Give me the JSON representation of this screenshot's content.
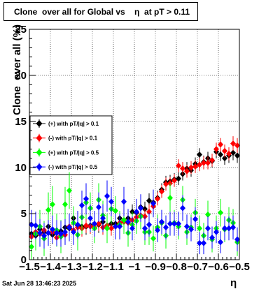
{
  "title": "Clone  over all for Global vs    η  at pT > 0.11",
  "timestamp": "Sat Jun 28 13:46:23 2025",
  "chart_data": {
    "type": "scatter",
    "title": "Clone  over all for Global vs    η  at pT > 0.11",
    "xlabel": "η",
    "ylabel": "Clone  over all (%)",
    "xlim": [
      -1.5,
      -0.5
    ],
    "ylim": [
      0,
      25
    ],
    "x_ticks": [
      "−1.5",
      "−1.4",
      "−1.3",
      "−1.2",
      "−1.1",
      "−1",
      "−0.9",
      "−0.8",
      "−0.7",
      "−0.6",
      "−0.5"
    ],
    "y_ticks": [
      "0",
      "5",
      "10",
      "15",
      "20",
      "25"
    ],
    "grid": true,
    "legend_position": "left-middle",
    "series": [
      {
        "name": "(+) with pT/|q| > 0.1",
        "color": "#000000",
        "x": [
          -1.49,
          -1.47,
          -1.45,
          -1.43,
          -1.41,
          -1.39,
          -1.37,
          -1.35,
          -1.33,
          -1.31,
          -1.29,
          -1.27,
          -1.25,
          -1.23,
          -1.21,
          -1.19,
          -1.17,
          -1.15,
          -1.13,
          -1.11,
          -1.09,
          -1.07,
          -1.05,
          -1.03,
          -1.01,
          -0.99,
          -0.97,
          -0.95,
          -0.93,
          -0.91,
          -0.89,
          -0.87,
          -0.85,
          -0.83,
          -0.81,
          -0.79,
          -0.77,
          -0.75,
          -0.73,
          -0.71,
          -0.69,
          -0.67,
          -0.65,
          -0.63,
          -0.61,
          -0.59,
          -0.57,
          -0.55,
          -0.53,
          -0.51
        ],
        "y": [
          2.8,
          2.6,
          3.3,
          3.0,
          3.6,
          2.7,
          2.9,
          3.1,
          3.5,
          3.4,
          4.5,
          3.7,
          3.6,
          3.6,
          3.7,
          3.4,
          3.8,
          4.1,
          3.7,
          3.9,
          3.9,
          4.5,
          4.2,
          4.5,
          5.2,
          5.1,
          5.7,
          5.5,
          6.4,
          6.2,
          6.7,
          7.6,
          8.4,
          8.5,
          8.7,
          8.8,
          9.3,
          9.9,
          9.7,
          10.4,
          11.4,
          10.6,
          11.0,
          10.7,
          11.7,
          11.4,
          11.0,
          11.3,
          11.6,
          11.3
        ],
        "err": [
          1.2,
          1.1,
          1.1,
          1.0,
          1.1,
          1.0,
          0.9,
          1.0,
          0.9,
          1.0,
          1.0,
          0.9,
          0.9,
          0.9,
          0.9,
          0.8,
          0.9,
          0.9,
          0.8,
          0.8,
          0.8,
          0.8,
          0.8,
          0.8,
          0.8,
          0.8,
          0.8,
          0.8,
          0.8,
          0.7,
          0.8,
          0.7,
          0.7,
          0.7,
          0.7,
          0.7,
          0.7,
          0.7,
          0.7,
          0.7,
          0.7,
          0.7,
          0.7,
          0.7,
          0.7,
          0.7,
          0.7,
          0.8,
          0.8,
          0.8
        ]
      },
      {
        "name": "(-) with pT/|q| > 0.1",
        "color": "#ff0000",
        "x": [
          -1.49,
          -1.47,
          -1.45,
          -1.43,
          -1.41,
          -1.39,
          -1.37,
          -1.35,
          -1.33,
          -1.31,
          -1.29,
          -1.27,
          -1.25,
          -1.23,
          -1.21,
          -1.19,
          -1.17,
          -1.15,
          -1.13,
          -1.11,
          -1.09,
          -1.07,
          -1.05,
          -1.03,
          -1.01,
          -0.99,
          -0.97,
          -0.95,
          -0.93,
          -0.91,
          -0.89,
          -0.87,
          -0.85,
          -0.83,
          -0.81,
          -0.79,
          -0.77,
          -0.75,
          -0.73,
          -0.71,
          -0.69,
          -0.67,
          -0.65,
          -0.63,
          -0.61,
          -0.59,
          -0.57,
          -0.55,
          -0.53,
          -0.51
        ],
        "y": [
          2.5,
          3.0,
          2.8,
          3.2,
          2.9,
          3.0,
          2.4,
          2.6,
          2.7,
          3.6,
          3.2,
          3.5,
          3.4,
          3.7,
          3.6,
          3.5,
          3.9,
          3.5,
          3.7,
          3.4,
          3.6,
          4.0,
          4.1,
          4.0,
          4.3,
          4.6,
          4.8,
          4.7,
          5.2,
          5.8,
          6.6,
          7.4,
          8.2,
          8.3,
          8.6,
          10.2,
          9.9,
          9.6,
          10.0,
          10.1,
          10.3,
          10.5,
          10.5,
          10.8,
          12.0,
          12.5,
          11.8,
          11.5,
          12.6,
          12.4
        ],
        "err": [
          1.2,
          1.1,
          1.1,
          1.0,
          1.0,
          1.0,
          0.9,
          0.9,
          0.9,
          0.9,
          0.9,
          0.9,
          0.9,
          0.8,
          0.8,
          0.8,
          0.8,
          0.8,
          0.8,
          0.8,
          0.8,
          0.8,
          0.8,
          0.8,
          0.8,
          0.8,
          0.8,
          0.8,
          0.8,
          0.7,
          0.7,
          0.7,
          0.7,
          0.7,
          0.7,
          0.7,
          0.7,
          0.7,
          0.7,
          0.7,
          0.7,
          0.7,
          0.7,
          0.7,
          0.7,
          0.7,
          0.7,
          0.7,
          0.8,
          0.8
        ]
      },
      {
        "name": "(+) with pT/|q| > 0.5",
        "color": "#00ff00",
        "x": [
          -1.49,
          -1.47,
          -1.45,
          -1.43,
          -1.41,
          -1.39,
          -1.37,
          -1.35,
          -1.33,
          -1.31,
          -1.29,
          -1.27,
          -1.25,
          -1.23,
          -1.21,
          -1.19,
          -1.17,
          -1.15,
          -1.13,
          -1.11,
          -1.09,
          -1.07,
          -1.05,
          -1.03,
          -1.01,
          -0.99,
          -0.97,
          -0.95,
          -0.93,
          -0.91,
          -0.89,
          -0.87,
          -0.85,
          -0.83,
          -0.81,
          -0.79,
          -0.77,
          -0.75,
          -0.73,
          -0.71,
          -0.69,
          -0.67,
          -0.65,
          -0.63,
          -0.61,
          -0.59,
          -0.57,
          -0.55,
          -0.53,
          -0.51
        ],
        "y": [
          1.4,
          2.8,
          3.6,
          2.3,
          5.4,
          6.0,
          3.2,
          2.5,
          6.0,
          7.5,
          4.0,
          2.7,
          4.6,
          6.2,
          5.6,
          3.4,
          6.5,
          4.8,
          3.4,
          5.5,
          5.3,
          3.8,
          4.3,
          2.9,
          3.8,
          4.2,
          4.7,
          3.0,
          3.0,
          2.3,
          3.5,
          4.0,
          2.6,
          6.7,
          4.0,
          3.6,
          6.5,
          3.0,
          3.5,
          5.1,
          3.4,
          2.6,
          4.9,
          2.2,
          3.4,
          5.1,
          3.3,
          4.3,
          4.0,
          1.9
        ],
        "err": [
          1.8,
          1.8,
          1.8,
          1.9,
          1.9,
          2.0,
          1.8,
          1.8,
          1.9,
          2.0,
          1.8,
          1.7,
          1.8,
          1.8,
          1.7,
          1.6,
          1.8,
          1.6,
          1.6,
          1.6,
          1.6,
          1.5,
          1.5,
          1.5,
          1.4,
          1.4,
          1.4,
          1.4,
          1.4,
          1.4,
          1.4,
          1.4,
          1.4,
          1.6,
          1.4,
          1.4,
          1.5,
          1.4,
          1.4,
          1.5,
          1.4,
          1.4,
          1.5,
          1.4,
          1.4,
          1.5,
          1.4,
          1.4,
          1.5,
          1.5
        ]
      },
      {
        "name": "(-) with pT/|q| > 0.5",
        "color": "#0000ff",
        "x": [
          -1.49,
          -1.47,
          -1.45,
          -1.43,
          -1.41,
          -1.39,
          -1.37,
          -1.35,
          -1.33,
          -1.31,
          -1.29,
          -1.27,
          -1.25,
          -1.23,
          -1.21,
          -1.19,
          -1.17,
          -1.15,
          -1.13,
          -1.11,
          -1.09,
          -1.07,
          -1.05,
          -1.03,
          -1.01,
          -0.99,
          -0.97,
          -0.95,
          -0.93,
          -0.91,
          -0.89,
          -0.87,
          -0.85,
          -0.83,
          -0.81,
          -0.79,
          -0.77,
          -0.75,
          -0.73,
          -0.71,
          -0.69,
          -0.67,
          -0.65,
          -0.63,
          -0.61,
          -0.59,
          -0.57,
          -0.55,
          -0.53,
          -0.51
        ],
        "y": [
          3.8,
          3.7,
          2.9,
          2.6,
          2.9,
          3.3,
          2.9,
          2.8,
          3.0,
          3.5,
          3.0,
          3.8,
          5.9,
          6.6,
          4.5,
          3.9,
          5.7,
          4.5,
          6.9,
          6.3,
          3.6,
          3.6,
          6.3,
          4.1,
          3.4,
          5.2,
          5.6,
          3.4,
          3.8,
          6.1,
          3.2,
          4.1,
          3.5,
          3.9,
          3.9,
          3.9,
          5.6,
          3.6,
          3.3,
          4.4,
          1.8,
          1.8,
          3.4,
          2.4,
          3.0,
          1.9,
          3.4,
          3.4,
          3.5,
          2.2
        ],
        "err": [
          1.6,
          1.5,
          1.5,
          1.4,
          1.4,
          1.5,
          1.4,
          1.4,
          1.4,
          1.5,
          1.4,
          1.5,
          1.6,
          1.7,
          1.5,
          1.4,
          1.6,
          1.5,
          1.7,
          1.6,
          1.4,
          1.4,
          1.6,
          1.4,
          1.3,
          1.4,
          1.5,
          1.3,
          1.3,
          1.5,
          1.3,
          1.3,
          1.3,
          1.3,
          1.3,
          1.3,
          1.4,
          1.3,
          1.3,
          1.3,
          1.2,
          1.2,
          1.3,
          1.2,
          1.2,
          1.2,
          1.3,
          1.3,
          1.3,
          1.3
        ]
      }
    ]
  }
}
